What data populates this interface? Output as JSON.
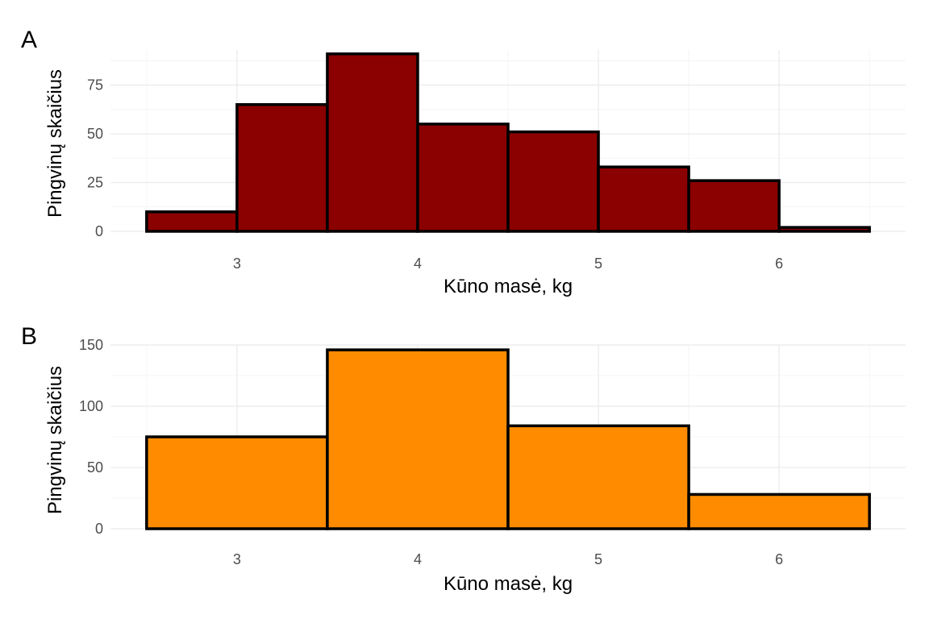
{
  "chart_data": [
    {
      "type": "bar",
      "tag": "A",
      "xlabel": "Kūno masė, kg",
      "ylabel": "Pingvinų skaičius",
      "fill": "#8b0000",
      "bin_width": 0.5,
      "bin_centers": [
        2.75,
        3.25,
        3.75,
        4.25,
        4.75,
        5.25,
        5.75,
        6.25
      ],
      "values": [
        10,
        65,
        91,
        55,
        51,
        33,
        26,
        2
      ],
      "xlim": [
        2.3,
        6.7
      ],
      "ylim": [
        0,
        93
      ],
      "x_ticks": [
        3,
        4,
        5,
        6
      ],
      "y_ticks": [
        0,
        25,
        50,
        75
      ],
      "grid": true
    },
    {
      "type": "bar",
      "tag": "B",
      "xlabel": "Kūno masė, kg",
      "ylabel": "Pingvinų skaičius",
      "fill": "#ff8c00",
      "bin_width": 1.0,
      "bin_centers": [
        3.0,
        4.0,
        5.0,
        6.0
      ],
      "values": [
        75,
        146,
        84,
        28
      ],
      "xlim": [
        2.3,
        6.7
      ],
      "ylim": [
        0,
        150
      ],
      "x_ticks": [
        3,
        4,
        5,
        6
      ],
      "y_ticks": [
        0,
        50,
        100,
        150
      ],
      "grid": true
    }
  ]
}
